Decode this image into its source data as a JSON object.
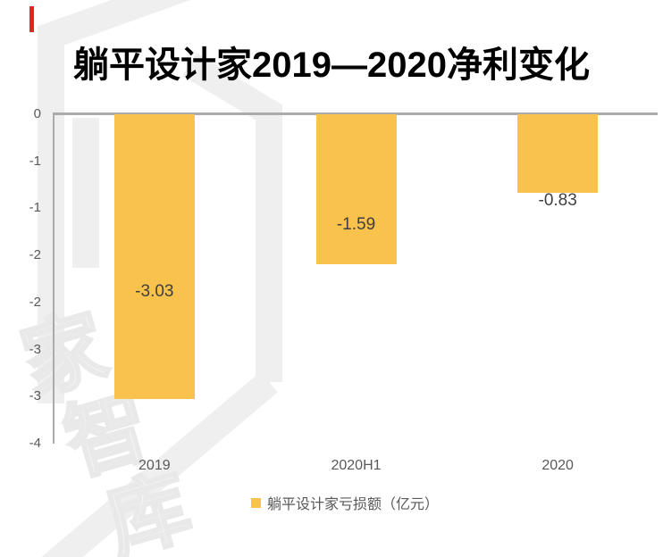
{
  "title": "躺平设计家2019—2020净利变化",
  "accent_color": "#E02626",
  "chart_data": {
    "type": "bar",
    "title": "躺平设计家2019—2020净利变化",
    "categories": [
      "2019",
      "2020H1",
      "2020"
    ],
    "series": [
      {
        "name": "躺平设计家亏损额（亿元）",
        "values": [
          -3.03,
          -1.59,
          -0.83
        ]
      }
    ],
    "data_labels": [
      "-3.03",
      "-1.59",
      "-0.83"
    ],
    "ylim": [
      -3.5,
      0
    ],
    "ytick_step": 0.5,
    "ytick_labels": [
      "0",
      "-1",
      "-1",
      "-2",
      "-2",
      "-3",
      "-3",
      "-4"
    ],
    "xlabel": "",
    "ylabel": "",
    "grid": false,
    "legend_position": "bottom",
    "bar_color": "#F9C24C",
    "axis_line_color": "#ABABAB",
    "tick_color": "#595959",
    "data_label_color": "#3F3F3F"
  },
  "legend": {
    "swatch_color": "#F9C24C",
    "label": "躺平设计家亏损额（亿元）"
  },
  "watermark": {
    "color": "#EFEFEF",
    "chars": {
      "c0": "家",
      "c1": "智",
      "c2": "库"
    }
  }
}
